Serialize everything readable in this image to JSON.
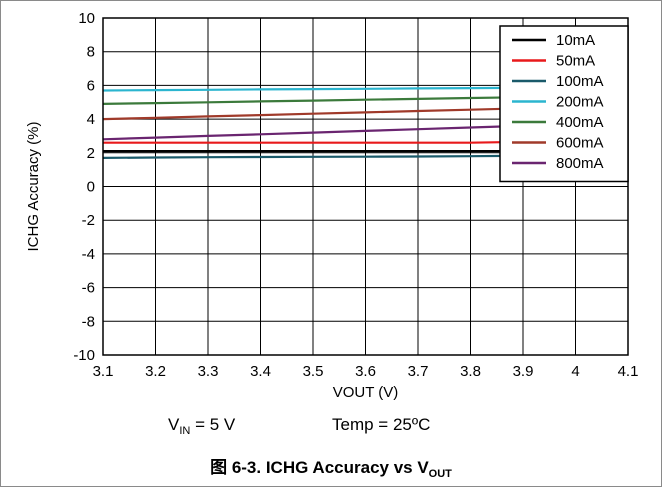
{
  "chart_data": {
    "type": "line",
    "xlabel": "VOUT (V)",
    "ylabel": "ICHG Accuracy (%)",
    "xlim": [
      3.1,
      4.1
    ],
    "ylim": [
      -10,
      10
    ],
    "x_ticks": [
      "3.1",
      "3.2",
      "3.3",
      "3.4",
      "3.5",
      "3.6",
      "3.7",
      "3.8",
      "3.9",
      "4",
      "4.1"
    ],
    "y_ticks": [
      "10",
      "8",
      "6",
      "4",
      "2",
      "0",
      "-2",
      "-4",
      "-6",
      "-8",
      "-10"
    ],
    "grid": true,
    "legend_position": "top-right",
    "x": [
      3.1,
      3.2,
      3.3,
      3.4,
      3.5,
      3.6,
      3.7,
      3.8,
      3.9,
      4.0,
      4.1
    ],
    "series": [
      {
        "name": "10mA",
        "color": "#000000",
        "values": [
          2.1,
          2.1,
          2.1,
          2.1,
          2.1,
          2.1,
          2.1,
          2.1,
          2.1,
          2.1,
          2.1
        ]
      },
      {
        "name": "50mA",
        "color": "#e8191b",
        "values": [
          2.6,
          2.6,
          2.6,
          2.6,
          2.6,
          2.6,
          2.6,
          2.6,
          2.65,
          2.65,
          2.65
        ]
      },
      {
        "name": "100mA",
        "color": "#1a5a6a",
        "values": [
          1.7,
          1.72,
          1.74,
          1.75,
          1.76,
          1.77,
          1.78,
          1.8,
          1.82,
          1.83,
          1.85
        ]
      },
      {
        "name": "200mA",
        "color": "#2bb5cf",
        "values": [
          5.7,
          5.72,
          5.74,
          5.76,
          5.78,
          5.8,
          5.82,
          5.84,
          5.86,
          5.88,
          5.9
        ]
      },
      {
        "name": "400mA",
        "color": "#3b7a3b",
        "values": [
          4.9,
          4.95,
          5.0,
          5.05,
          5.1,
          5.15,
          5.2,
          5.25,
          5.3,
          5.35,
          5.4
        ]
      },
      {
        "name": "600mA",
        "color": "#a03a2a",
        "values": [
          4.0,
          4.08,
          4.16,
          4.24,
          4.32,
          4.4,
          4.48,
          4.56,
          4.64,
          4.72,
          4.8
        ]
      },
      {
        "name": "800mA",
        "color": "#6a2570",
        "values": [
          2.8,
          2.9,
          3.0,
          3.1,
          3.2,
          3.3,
          3.4,
          3.5,
          3.6,
          3.7,
          3.8
        ]
      }
    ]
  },
  "conditions": {
    "vin_prefix": "V",
    "vin_sub": "IN",
    "vin_value": " = 5 V",
    "temp": "Temp = 25ºC"
  },
  "caption": {
    "text": "图 6-3. ICHG Accuracy vs V",
    "sub": "OUT"
  }
}
